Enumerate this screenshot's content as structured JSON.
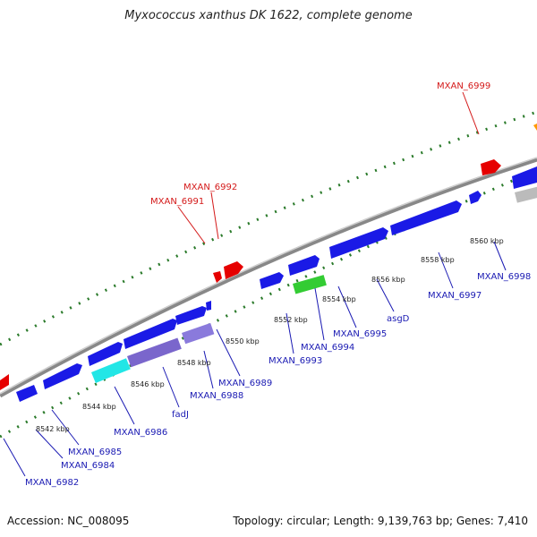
{
  "title": "Myxococcus xanthus DK 1622, complete genome",
  "footer": {
    "accession": "Accession: NC_008095",
    "topology": "Topology: circular; Length: 9,139,763 bp; Genes: 7,410"
  },
  "colors": {
    "forward_gene": "#1a1ae6",
    "reverse_gene": "#1a1ae6",
    "highlight_gene": "#e60000",
    "rrna_gene": "#33cc33",
    "cds_cyan": "#22e6e6",
    "cds_purple": "#7a66cc",
    "cds_gray": "#bbbbbb",
    "orange_gene": "#ff9900",
    "backbone": "#888888",
    "dots": "#2a7a2a",
    "blue_label": "#1a1ab3",
    "red_label": "#d41a1a"
  },
  "chart_data": {
    "type": "genome-map",
    "scale_unit": "kbp",
    "ticks": [
      "8542 kbp",
      "8544 kbp",
      "8546 kbp",
      "8548 kbp",
      "8550 kbp",
      "8552 kbp",
      "8554 kbp",
      "8556 kbp",
      "8558 kbp",
      "8560 kbp"
    ],
    "labels": {
      "red": [
        "MXAN_6999",
        "MXAN_6992",
        "MXAN_6991"
      ],
      "blue": [
        "MXAN_6998",
        "MXAN_6997",
        "asgD",
        "MXAN_6995",
        "MXAN_6994",
        "MXAN_6993",
        "MXAN_6989",
        "MXAN_6988",
        "fadJ",
        "MXAN_6986",
        "MXAN_6985",
        "MXAN_6984",
        "MXAN_6982"
      ]
    }
  }
}
